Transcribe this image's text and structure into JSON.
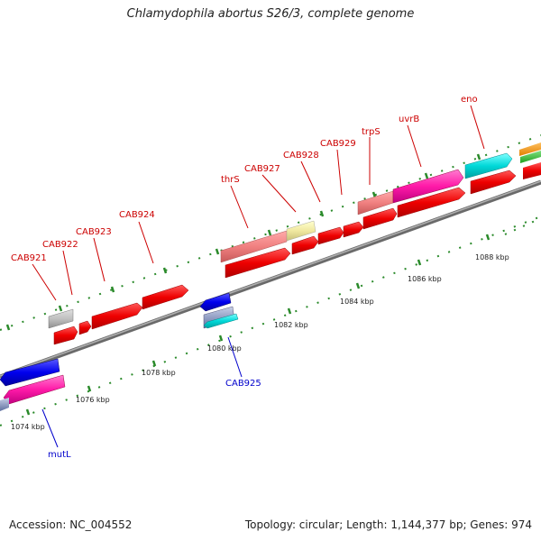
{
  "header": {
    "title": "Chlamydophila abortus S26/3, complete genome"
  },
  "footer": {
    "accession": "Accession: NC_004552",
    "topology": "Topology: circular; Length: 1,144,377 bp; Genes: 974"
  },
  "colors": {
    "forward_label": "#cc0000",
    "reverse_label": "#0000cc",
    "backbone": "#8a8a8a",
    "tick": "#2a8a2a"
  },
  "scale": {
    "ticks": [
      "1074 kbp",
      "1076 kbp",
      "1078 kbp",
      "1080 kbp",
      "1082 kbp",
      "1084 kbp",
      "1086 kbp",
      "1088 kbp"
    ]
  },
  "genes": {
    "forward_labels": [
      "CAB921",
      "CAB922",
      "CAB923",
      "CAB924",
      "thrS",
      "CAB927",
      "CAB928",
      "CAB929",
      "trpS",
      "uvrB",
      "eno"
    ],
    "reverse_labels": [
      "CAB925",
      "mutL"
    ]
  }
}
